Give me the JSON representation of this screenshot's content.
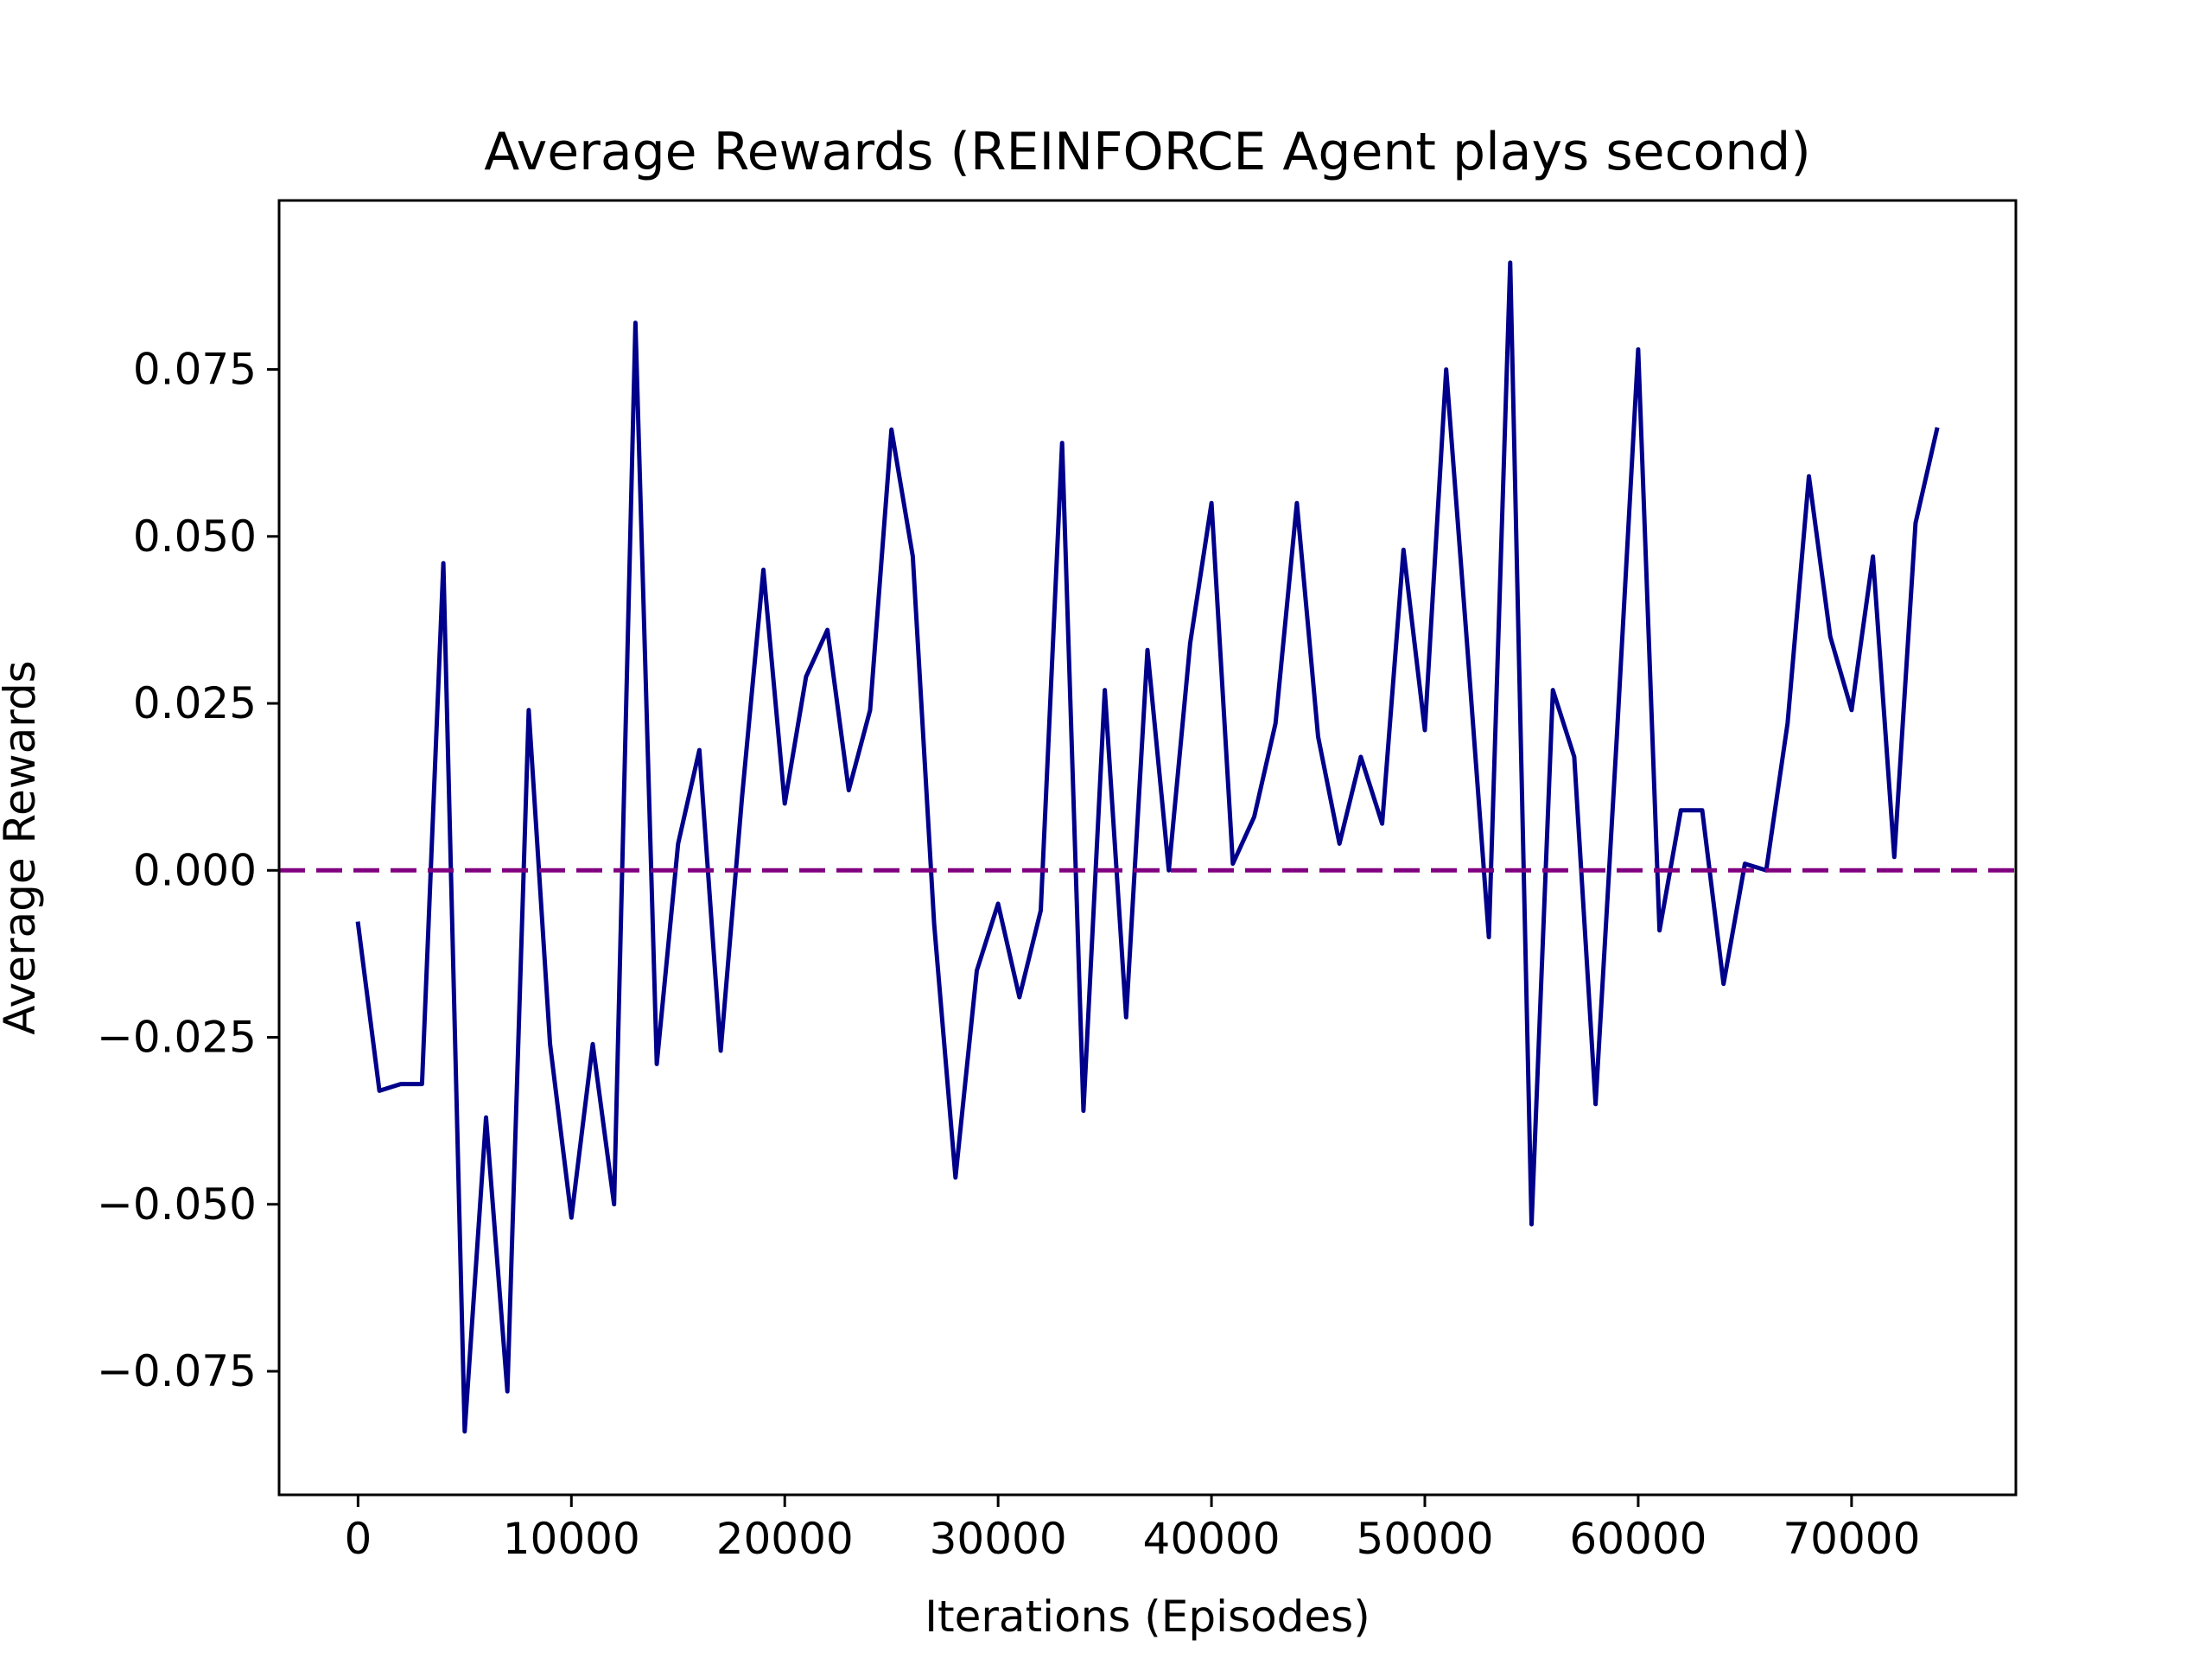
{
  "chart_data": {
    "type": "line",
    "title": "Average Rewards (REINFORCE Agent plays second)",
    "xlabel": "Iterations (Episodes)",
    "ylabel": "Average Rewards",
    "xlim": [
      -3700,
      77700
    ],
    "ylim": [
      -0.0935,
      0.1003
    ],
    "x_ticks": [
      0,
      10000,
      20000,
      30000,
      40000,
      50000,
      60000,
      70000
    ],
    "x_tick_labels": [
      "0",
      "10000",
      "20000",
      "30000",
      "40000",
      "50000",
      "60000",
      "70000"
    ],
    "y_ticks": [
      -0.075,
      -0.05,
      -0.025,
      0.0,
      0.025,
      0.05,
      0.075
    ],
    "y_tick_labels": [
      "−0.075",
      "−0.050",
      "−0.025",
      "0.000",
      "0.025",
      "0.050",
      "0.075"
    ],
    "grid": false,
    "series": [
      {
        "color": "#00008b",
        "x": [
          0,
          1000,
          2000,
          3000,
          4000,
          5000,
          6000,
          7000,
          8000,
          9000,
          10000,
          11000,
          12000,
          13000,
          14000,
          15000,
          16000,
          17000,
          18000,
          19000,
          20000,
          21000,
          22000,
          23000,
          24000,
          25000,
          26000,
          27000,
          28000,
          29000,
          30000,
          31000,
          32000,
          33000,
          34000,
          35000,
          36000,
          37000,
          38000,
          39000,
          40000,
          41000,
          42000,
          43000,
          44000,
          45000,
          46000,
          47000,
          48000,
          49000,
          50000,
          51000,
          52000,
          53000,
          54000,
          55000,
          56000,
          57000,
          58000,
          59000,
          60000,
          61000,
          62000,
          63000,
          64000,
          65000,
          66000,
          67000,
          68000,
          69000,
          70000,
          71000,
          72000,
          73000,
          74000
        ],
        "values": [
          -0.008,
          -0.033,
          -0.032,
          -0.032,
          0.046,
          -0.084,
          -0.037,
          -0.078,
          0.024,
          -0.026,
          -0.052,
          -0.026,
          -0.05,
          0.082,
          -0.029,
          0.004,
          0.018,
          -0.027,
          0.011,
          0.045,
          0.01,
          0.029,
          0.036,
          0.012,
          0.024,
          0.066,
          0.047,
          -0.008,
          -0.046,
          -0.015,
          -0.005,
          -0.019,
          -0.006,
          0.064,
          -0.036,
          0.027,
          -0.022,
          0.033,
          0.0,
          0.034,
          0.055,
          0.001,
          0.008,
          0.022,
          0.055,
          0.02,
          0.004,
          0.017,
          0.007,
          0.048,
          0.021,
          0.075,
          0.033,
          -0.01,
          0.091,
          -0.053,
          0.027,
          0.017,
          -0.035,
          0.02,
          0.078,
          -0.009,
          0.009,
          0.009,
          -0.017,
          0.001,
          0.0,
          0.022,
          0.059,
          0.035,
          0.024,
          0.047,
          0.002,
          0.052,
          0.066
        ]
      }
    ],
    "reference_line": {
      "y": 0.0,
      "color": "#800080",
      "style": "dashed"
    }
  }
}
